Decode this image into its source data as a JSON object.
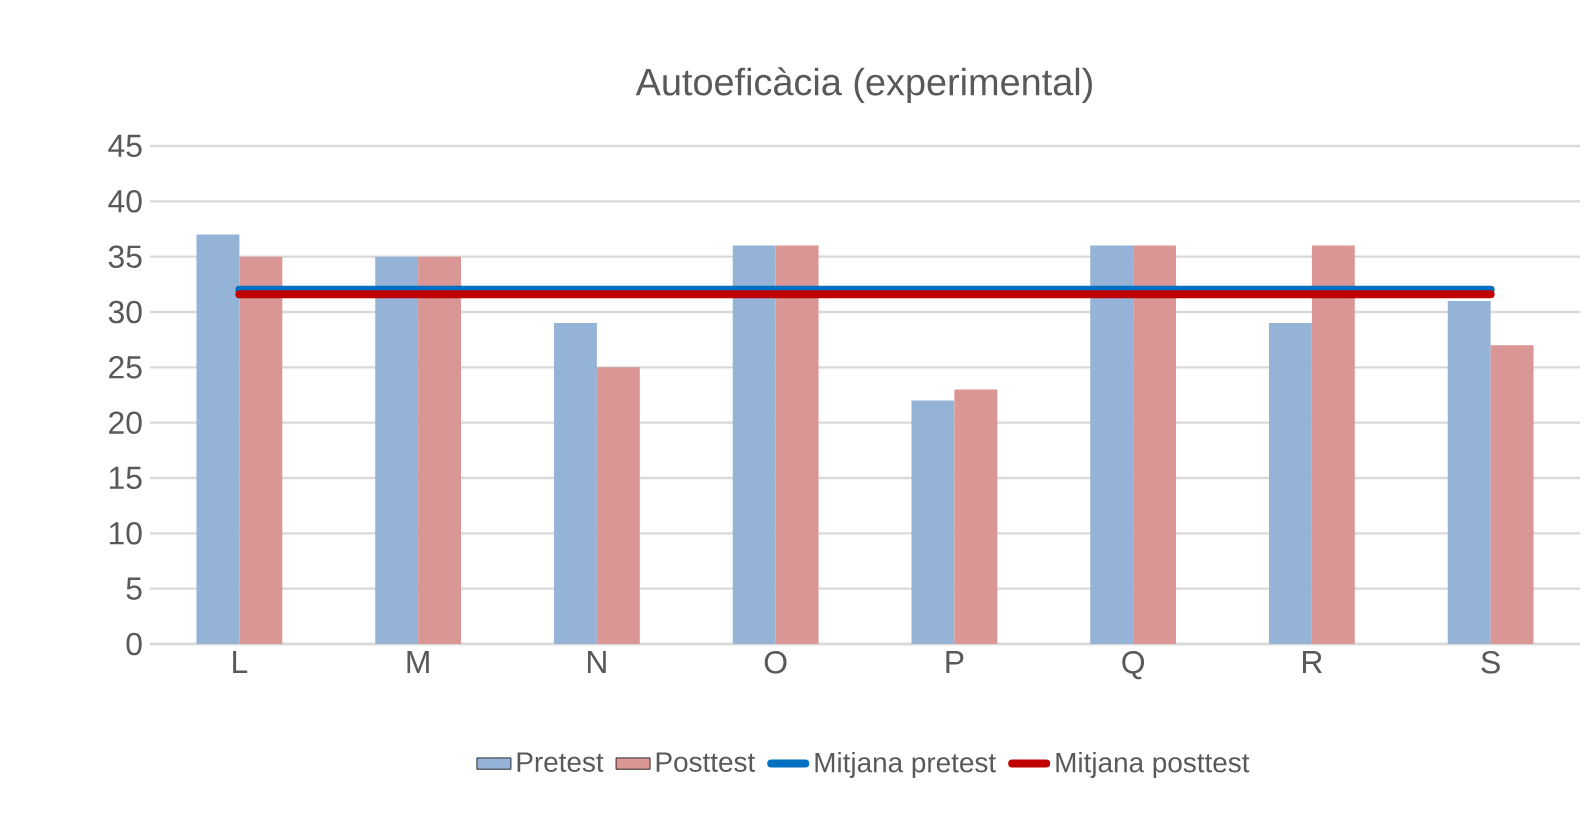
{
  "chart_data": {
    "type": "bar",
    "title": "Autoeficàcia (experimental)",
    "categories": [
      "L",
      "M",
      "N",
      "O",
      "P",
      "Q",
      "R",
      "S"
    ],
    "series": [
      {
        "name": "Pretest",
        "color": "#95b3d7",
        "values": [
          37,
          35,
          29,
          36,
          22,
          36,
          29,
          31
        ]
      },
      {
        "name": "Posttest",
        "color": "#d99694",
        "values": [
          35,
          35,
          25,
          36,
          23,
          36,
          36,
          27
        ]
      },
      {
        "name": "Mitjana pretest",
        "type": "line",
        "color": "#0070c0",
        "values": [
          32,
          32,
          32,
          32,
          32,
          32,
          32,
          32
        ]
      },
      {
        "name": "Mitjana posttest",
        "type": "line",
        "color": "#c00000",
        "values": [
          31.6,
          31.6,
          31.6,
          31.6,
          31.6,
          31.6,
          31.6,
          31.6
        ]
      }
    ],
    "ylim": [
      0,
      45
    ],
    "yticks": [
      0,
      5,
      10,
      15,
      20,
      25,
      30,
      35,
      40,
      45
    ],
    "grid": "y",
    "legend": "bottom",
    "marker": "none"
  }
}
